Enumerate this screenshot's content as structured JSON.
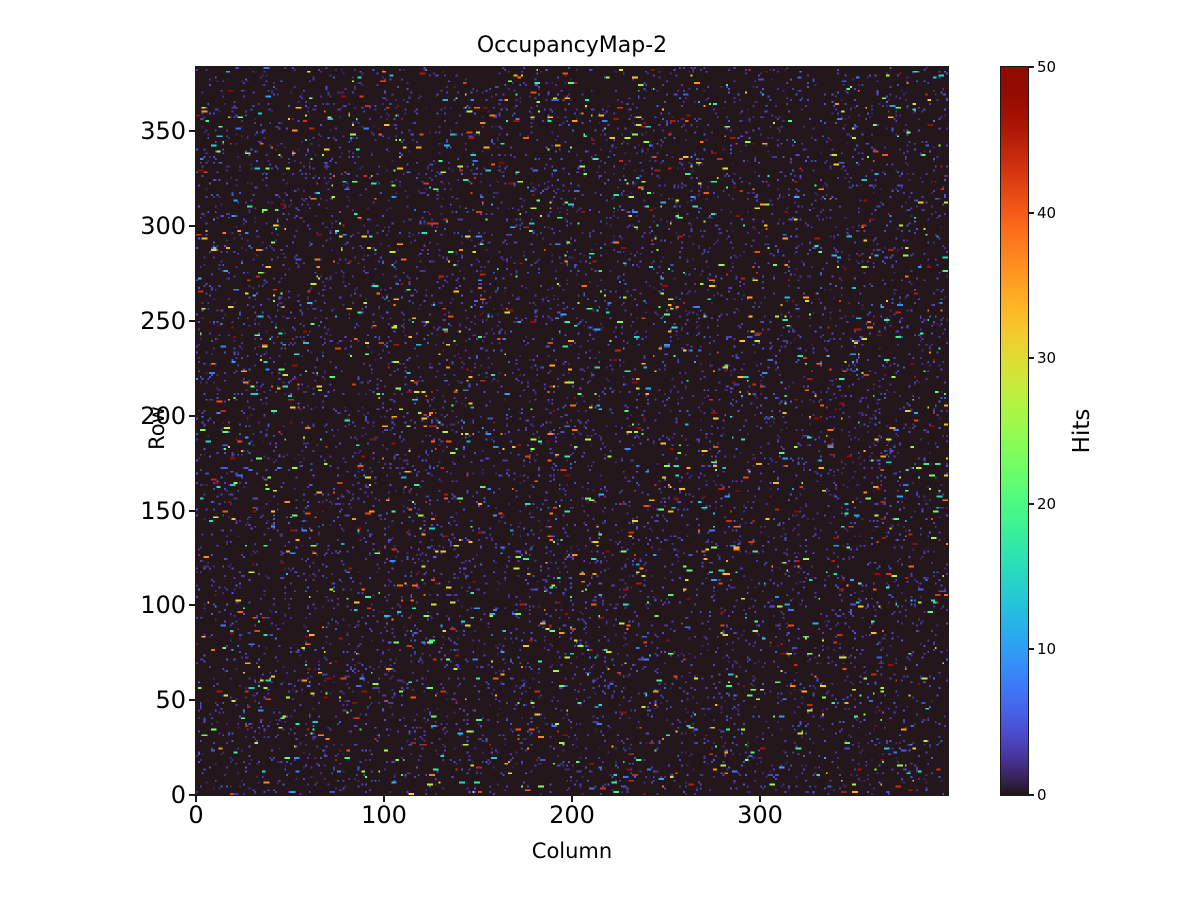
{
  "chart_data": {
    "type": "heatmap",
    "title": "OccupancyMap-2",
    "xlabel": "Column",
    "ylabel": "Row",
    "colorbar_label": "Hits",
    "x_ticks": [
      0,
      100,
      200,
      300
    ],
    "y_ticks": [
      0,
      50,
      100,
      150,
      200,
      250,
      300,
      350
    ],
    "colorbar_ticks": [
      0,
      10,
      20,
      30,
      40,
      50
    ],
    "x_range": [
      0,
      400
    ],
    "y_range": [
      0,
      384
    ],
    "n_cols": 400,
    "n_rows": 384,
    "value_range": [
      0,
      50
    ],
    "colormap": "turbo",
    "background_value": 0,
    "hit_fraction": 0.013,
    "low_noise_fraction": 0.05,
    "dash_max_len": 3,
    "seed": 42,
    "description": "Sparse random pixel-detector occupancy map: most pixels are 0 (dark turbo background); ~3% of pixels form short horizontal hit dashes with values uniformly distributed between 1 and 50; faint low-value noise mottles the background.",
    "colors": {
      "zero_value": "#30123b",
      "max_value": "#7a0403",
      "axis": "#000000",
      "figure_background": "#ffffff"
    }
  }
}
